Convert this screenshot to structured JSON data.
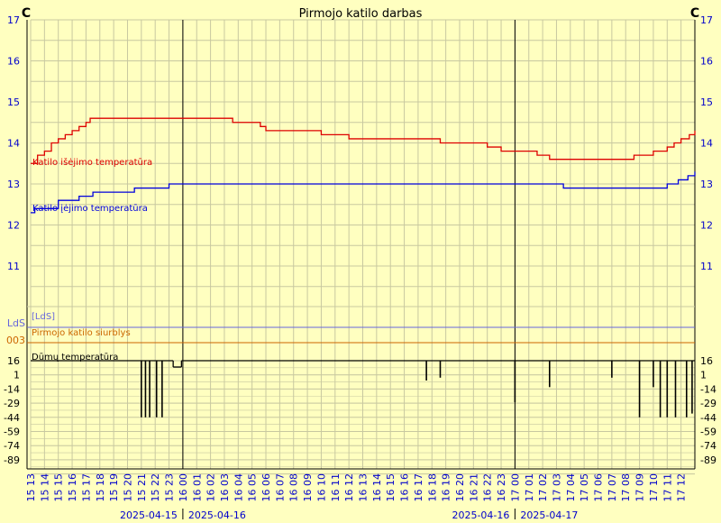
{
  "chart_data": {
    "type": "line",
    "title": "Pirmojo katilo darbas",
    "unit_label": "C",
    "colors": {
      "background": "#ffffc0",
      "grid": "#c8c8a0",
      "axis": "#000000",
      "tick_text": "#0000cc",
      "output_temp": "#dd0000",
      "input_temp": "#0000dd",
      "flue_temp": "#000000",
      "lds": "#6666dd",
      "pump": "#cc6600"
    },
    "upper_axis": {
      "ylim": [
        10,
        17
      ],
      "ticks": [
        11,
        12,
        13,
        14,
        15,
        16,
        17
      ]
    },
    "lower_axis": {
      "ticks": [
        "16",
        "1",
        "-14",
        "-29",
        "-44",
        "-59",
        "-74",
        "-89"
      ]
    },
    "x_hours": [
      "15 13",
      "15 14",
      "15 15",
      "15 16",
      "15 17",
      "15 18",
      "15 19",
      "15 20",
      "15 21",
      "15 22",
      "15 23",
      "16 00",
      "16 01",
      "16 02",
      "16 03",
      "16 04",
      "16 05",
      "16 06",
      "16 07",
      "16 08",
      "16 09",
      "16 10",
      "16 11",
      "16 12",
      "16 13",
      "16 14",
      "16 15",
      "16 16",
      "16 17",
      "16 18",
      "16 19",
      "16 20",
      "16 21",
      "16 22",
      "16 23",
      "17 00",
      "17 01",
      "17 02",
      "17 03",
      "17 04",
      "17 05",
      "17 06",
      "17 07",
      "17 08",
      "17 09",
      "17 10",
      "17 11",
      "17 12"
    ],
    "day_dividers": [
      {
        "hour_index": 11,
        "left": "2025-04-15",
        "right": "2025-04-16"
      },
      {
        "hour_index": 35,
        "left": "2025-04-16",
        "right": "2025-04-17"
      }
    ],
    "series": [
      {
        "key": "output_temp",
        "name": "Katilo išėjimo temperatūra",
        "points": [
          [
            0,
            13.5
          ],
          [
            0.5,
            13.7
          ],
          [
            1,
            13.8
          ],
          [
            1.5,
            14.0
          ],
          [
            2,
            14.1
          ],
          [
            2.5,
            14.2
          ],
          [
            3,
            14.3
          ],
          [
            3.5,
            14.4
          ],
          [
            4,
            14.5
          ],
          [
            4.3,
            14.6
          ],
          [
            14.5,
            14.6
          ],
          [
            14.6,
            14.5
          ],
          [
            16.3,
            14.5
          ],
          [
            16.6,
            14.4
          ],
          [
            17,
            14.3
          ],
          [
            20.5,
            14.3
          ],
          [
            21,
            14.2
          ],
          [
            23,
            14.1
          ],
          [
            29.5,
            14.1
          ],
          [
            29.6,
            14.0
          ],
          [
            32.5,
            14.0
          ],
          [
            33,
            13.9
          ],
          [
            34,
            13.8
          ],
          [
            36.5,
            13.8
          ],
          [
            36.6,
            13.7
          ],
          [
            37.5,
            13.6
          ],
          [
            43.3,
            13.6
          ],
          [
            43.6,
            13.7
          ],
          [
            45,
            13.8
          ],
          [
            46,
            13.9
          ],
          [
            46.5,
            14.0
          ],
          [
            47,
            14.1
          ],
          [
            47.6,
            14.2
          ],
          [
            48,
            14.3
          ]
        ]
      },
      {
        "key": "input_temp",
        "name": "Katilo įėjimo temperatūra",
        "points": [
          [
            0,
            12.3
          ],
          [
            0.3,
            12.4
          ],
          [
            2,
            12.6
          ],
          [
            3.5,
            12.7
          ],
          [
            4.5,
            12.8
          ],
          [
            7,
            12.8
          ],
          [
            7.5,
            12.9
          ],
          [
            9.5,
            12.9
          ],
          [
            10,
            13.0
          ],
          [
            38,
            13.0
          ],
          [
            38.5,
            12.9
          ],
          [
            43,
            12.9
          ],
          [
            45.5,
            12.9
          ],
          [
            46,
            13.0
          ],
          [
            46.8,
            13.1
          ],
          [
            47.5,
            13.2
          ],
          [
            48,
            13.3
          ]
        ]
      },
      {
        "key": "lds",
        "name": "[LdS]",
        "axis_label": "LdS"
      },
      {
        "key": "pump",
        "name": "Pirmojo katilo siurblys",
        "axis_label": "003"
      },
      {
        "key": "flue_temp",
        "name": "Dūmų temperatūra",
        "baseline": 16,
        "dips": [
          [
            8.0,
            -44
          ],
          [
            8.3,
            -44
          ],
          [
            8.6,
            -44
          ],
          [
            9.1,
            -44
          ],
          [
            9.5,
            -44
          ],
          [
            28.6,
            -5
          ],
          [
            29.6,
            -2
          ],
          [
            35.0,
            -28
          ],
          [
            37.5,
            -12
          ],
          [
            42.0,
            -2
          ],
          [
            44.0,
            -44
          ],
          [
            45.0,
            -12
          ],
          [
            45.5,
            -44
          ],
          [
            46.0,
            -44
          ],
          [
            46.6,
            -44
          ],
          [
            47.4,
            -44
          ],
          [
            47.8,
            -40
          ]
        ]
      }
    ]
  }
}
